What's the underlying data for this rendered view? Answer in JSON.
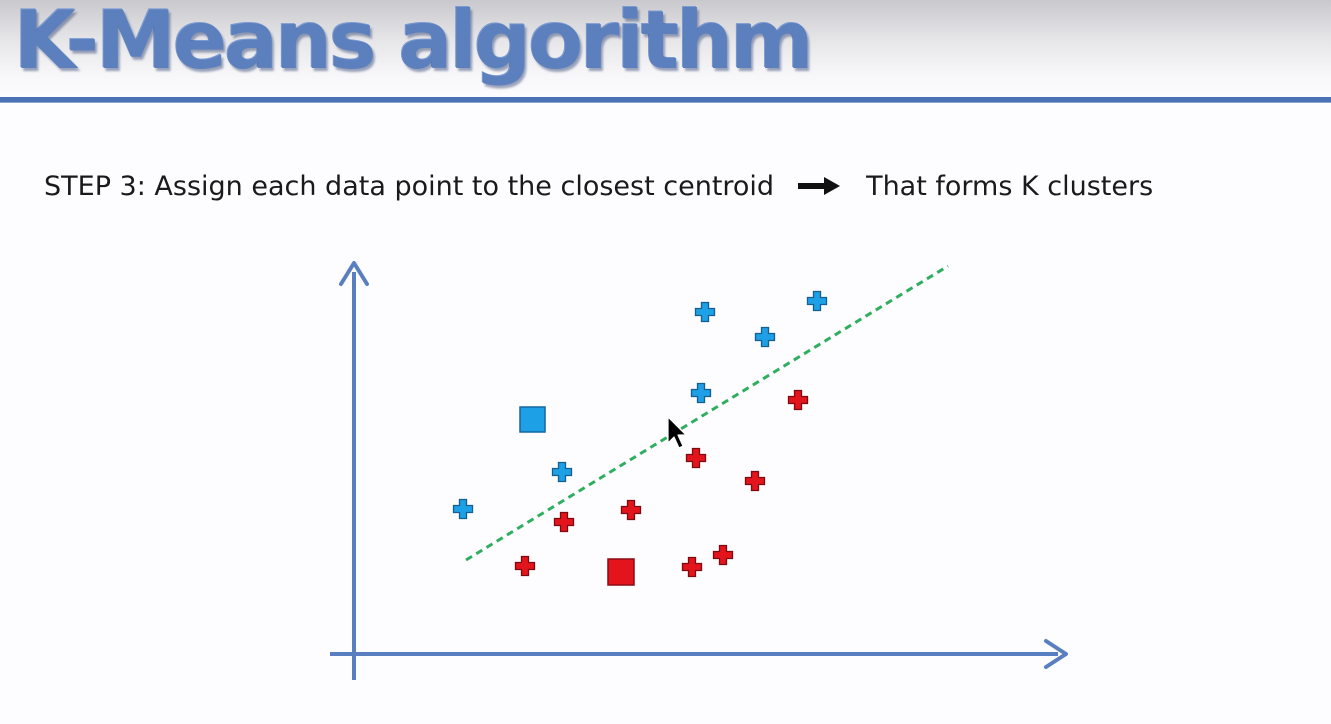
{
  "slide": {
    "title": "K-Means algorithm",
    "step": {
      "label": "STEP 3",
      "text": ": Assign each data point to the closest centroid",
      "arrow_icon": "right-arrow-icon",
      "result": "That forms K clusters"
    }
  },
  "colors": {
    "title": "#5c80bd",
    "rule": "#4a72b4",
    "axis": "#5a7fc0",
    "cluster_blue": "#1ea0e6",
    "cluster_red": "#e3141c",
    "boundary": "#2fae5f"
  },
  "diagram": {
    "axes": {
      "x_arrow": true,
      "y_arrow": true
    },
    "boundary_line": {
      "style": "dashed",
      "color_key": "boundary"
    },
    "centroids": [
      {
        "cluster": "blue",
        "shape": "square"
      },
      {
        "cluster": "red",
        "shape": "square"
      }
    ],
    "points": [
      {
        "cluster": "blue"
      },
      {
        "cluster": "blue"
      },
      {
        "cluster": "blue"
      },
      {
        "cluster": "blue"
      },
      {
        "cluster": "blue"
      },
      {
        "cluster": "blue"
      },
      {
        "cluster": "blue"
      },
      {
        "cluster": "red"
      },
      {
        "cluster": "red"
      },
      {
        "cluster": "red"
      },
      {
        "cluster": "red"
      },
      {
        "cluster": "red"
      },
      {
        "cluster": "red"
      },
      {
        "cluster": "red"
      },
      {
        "cluster": "red"
      },
      {
        "cluster": "red"
      }
    ],
    "cursor_icon": "mouse-pointer-icon"
  }
}
